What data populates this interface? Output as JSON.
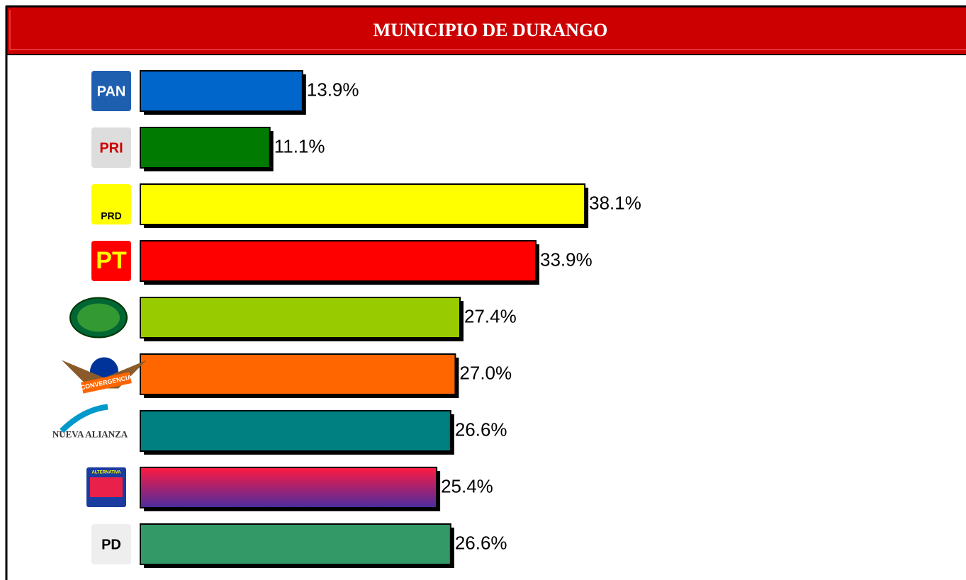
{
  "chart_data": {
    "type": "bar",
    "title": "MUNICIPIO DE DURANGO",
    "categories": [
      "PAN",
      "PRI",
      "PRD",
      "PT",
      null,
      "CONVERGENCIA",
      "NUEVA ALIANZA",
      "ALTERNATIVA",
      "PD"
    ],
    "values": [
      13.9,
      11.1,
      38.1,
      33.9,
      27.4,
      27.0,
      26.6,
      25.4,
      26.6
    ],
    "value_labels": [
      "13.9%",
      "11.1%",
      "38.1%",
      "33.9%",
      "27.4%",
      "27.0%",
      "26.6%",
      "25.4%",
      "26.6%"
    ],
    "colors": [
      "#0066cc",
      "#007a00",
      "#ffff00",
      "#ff0000",
      "#99cc00",
      "#ff6600",
      "#008080",
      [
        "#ff1a40",
        "#4a2ca0"
      ],
      "#339966"
    ]
  }
}
